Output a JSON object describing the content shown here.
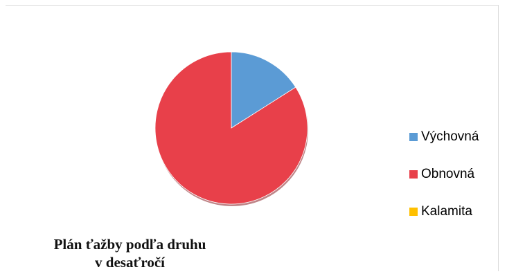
{
  "chart_data": {
    "type": "pie",
    "title_lines": [
      "Plán ťažby podľa druhu",
      "v desaťročí"
    ],
    "legend_position": "right",
    "series": [
      {
        "slices": [
          {
            "label": "Výchovná",
            "value": 16,
            "color": "#5b9bd5"
          },
          {
            "label": "Obnovná",
            "value": 84,
            "color": "#e8404a"
          },
          {
            "label": "Kalamita",
            "value": 0,
            "color": "#ffc000"
          }
        ]
      }
    ]
  }
}
